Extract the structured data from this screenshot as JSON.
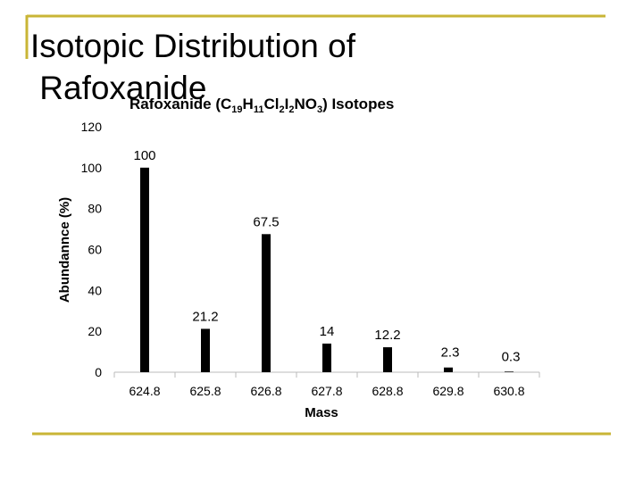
{
  "slide_title": "Isotopic Distribution of Rafoxanide",
  "chart_data": {
    "type": "bar",
    "title": "Rafoxanide (C19H11Cl2I2NO3) Isotopes",
    "x_label": "Mass",
    "y_label": "Abundannce (%)",
    "categories": [
      "624.8",
      "625.8",
      "626.8",
      "627.8",
      "628.8",
      "629.8",
      "630.8"
    ],
    "values": [
      100,
      21.2,
      67.5,
      14,
      12.2,
      2.3,
      0.3
    ],
    "color": "#000000",
    "ylim": [
      0,
      120
    ],
    "yticks": [
      0,
      20,
      40,
      60,
      80,
      100,
      120
    ],
    "grid": false
  }
}
